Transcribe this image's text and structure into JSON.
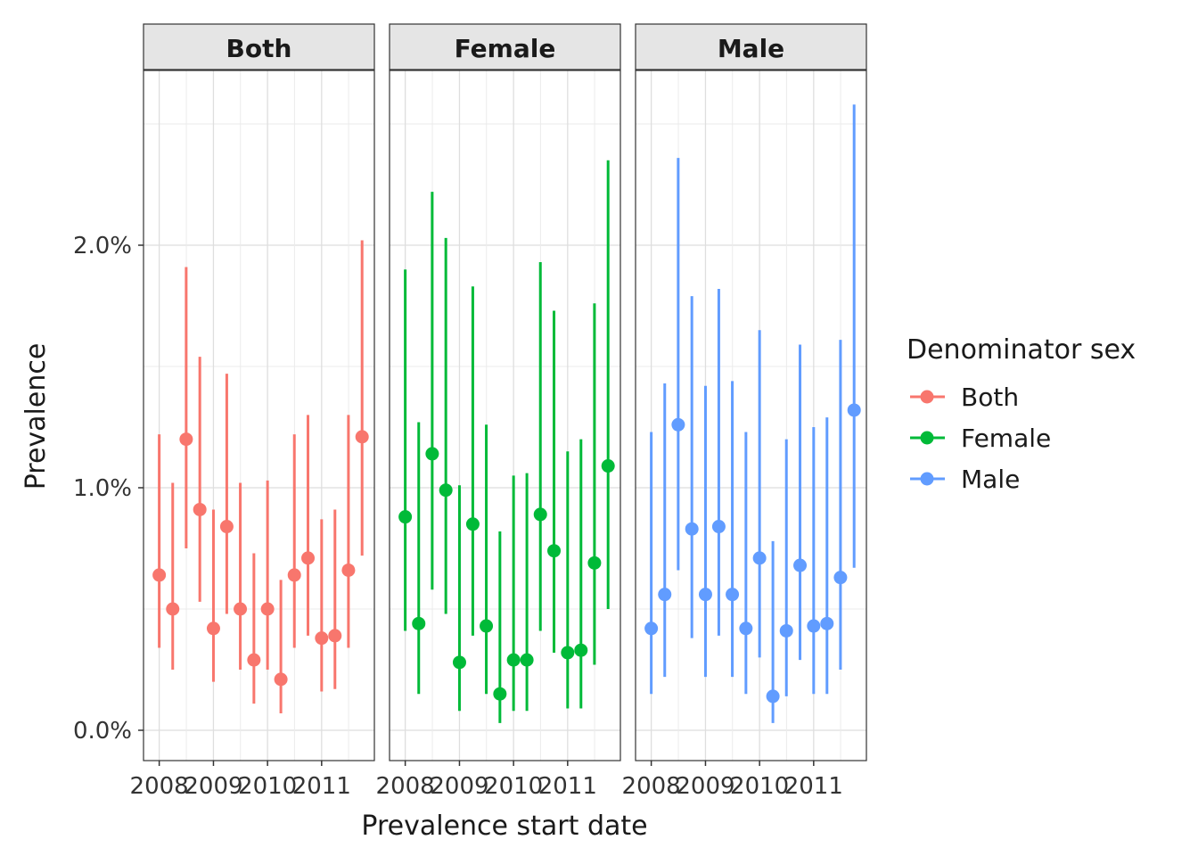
{
  "chart_data": {
    "type": "scatter",
    "xlabel": "Prevalence start date",
    "ylabel": "Prevalence",
    "ylim": [
      -0.0012,
      0.0272
    ],
    "xlim": [
      "2007-09-17",
      "2011-12-23"
    ],
    "y_ticks": [
      {
        "value": 0.0,
        "label": "0.0%"
      },
      {
        "value": 0.01,
        "label": "1.0%"
      },
      {
        "value": 0.02,
        "label": "2.0%"
      }
    ],
    "x_ticks": [
      {
        "date": "2008-01-01",
        "label": "2008"
      },
      {
        "date": "2009-01-01",
        "label": "2009"
      },
      {
        "date": "2010-01-01",
        "label": "2010"
      },
      {
        "date": "2011-01-01",
        "label": "2011"
      }
    ],
    "grid": true,
    "legend": {
      "title": "Denominator sex",
      "position": "right"
    },
    "panels": [
      {
        "strip": "Both",
        "color": "#F8766D",
        "points": [
          {
            "x": "2008-01-01",
            "y": 0.0064,
            "ymin": 0.0034,
            "ymax": 0.0122
          },
          {
            "x": "2008-04-01",
            "y": 0.005,
            "ymin": 0.0025,
            "ymax": 0.0102
          },
          {
            "x": "2008-07-01",
            "y": 0.012,
            "ymin": 0.0075,
            "ymax": 0.0191
          },
          {
            "x": "2008-10-01",
            "y": 0.0091,
            "ymin": 0.0053,
            "ymax": 0.0154
          },
          {
            "x": "2009-01-01",
            "y": 0.0042,
            "ymin": 0.002,
            "ymax": 0.0091
          },
          {
            "x": "2009-04-01",
            "y": 0.0084,
            "ymin": 0.0048,
            "ymax": 0.0147
          },
          {
            "x": "2009-07-01",
            "y": 0.005,
            "ymin": 0.0025,
            "ymax": 0.0102
          },
          {
            "x": "2009-10-01",
            "y": 0.0029,
            "ymin": 0.0011,
            "ymax": 0.0073
          },
          {
            "x": "2010-01-01",
            "y": 0.005,
            "ymin": 0.0025,
            "ymax": 0.0103
          },
          {
            "x": "2010-04-01",
            "y": 0.0021,
            "ymin": 0.0007,
            "ymax": 0.0062
          },
          {
            "x": "2010-07-01",
            "y": 0.0064,
            "ymin": 0.0034,
            "ymax": 0.0122
          },
          {
            "x": "2010-10-01",
            "y": 0.0071,
            "ymin": 0.0039,
            "ymax": 0.013
          },
          {
            "x": "2011-01-01",
            "y": 0.0038,
            "ymin": 0.0016,
            "ymax": 0.0087
          },
          {
            "x": "2011-04-01",
            "y": 0.0039,
            "ymin": 0.0017,
            "ymax": 0.0091
          },
          {
            "x": "2011-07-01",
            "y": 0.0066,
            "ymin": 0.0034,
            "ymax": 0.013
          },
          {
            "x": "2011-10-01",
            "y": 0.0121,
            "ymin": 0.0072,
            "ymax": 0.0202
          }
        ]
      },
      {
        "strip": "Female",
        "color": "#00BA38",
        "points": [
          {
            "x": "2008-01-01",
            "y": 0.0088,
            "ymin": 0.0041,
            "ymax": 0.019
          },
          {
            "x": "2008-04-01",
            "y": 0.0044,
            "ymin": 0.0015,
            "ymax": 0.0127
          },
          {
            "x": "2008-07-01",
            "y": 0.0114,
            "ymin": 0.0058,
            "ymax": 0.0222
          },
          {
            "x": "2008-10-01",
            "y": 0.0099,
            "ymin": 0.0048,
            "ymax": 0.0203
          },
          {
            "x": "2009-01-01",
            "y": 0.0028,
            "ymin": 0.0008,
            "ymax": 0.0101
          },
          {
            "x": "2009-04-01",
            "y": 0.0085,
            "ymin": 0.0039,
            "ymax": 0.0183
          },
          {
            "x": "2009-07-01",
            "y": 0.0043,
            "ymin": 0.0015,
            "ymax": 0.0126
          },
          {
            "x": "2009-10-01",
            "y": 0.0015,
            "ymin": 0.0003,
            "ymax": 0.0082
          },
          {
            "x": "2010-01-01",
            "y": 0.0029,
            "ymin": 0.0008,
            "ymax": 0.0105
          },
          {
            "x": "2010-04-01",
            "y": 0.0029,
            "ymin": 0.0008,
            "ymax": 0.0106
          },
          {
            "x": "2010-07-01",
            "y": 0.0089,
            "ymin": 0.0041,
            "ymax": 0.0193
          },
          {
            "x": "2010-10-01",
            "y": 0.0074,
            "ymin": 0.0032,
            "ymax": 0.0173
          },
          {
            "x": "2011-01-01",
            "y": 0.0032,
            "ymin": 0.0009,
            "ymax": 0.0115
          },
          {
            "x": "2011-04-01",
            "y": 0.0033,
            "ymin": 0.0009,
            "ymax": 0.012
          },
          {
            "x": "2011-07-01",
            "y": 0.0069,
            "ymin": 0.0027,
            "ymax": 0.0176
          },
          {
            "x": "2011-10-01",
            "y": 0.0109,
            "ymin": 0.005,
            "ymax": 0.0235
          }
        ]
      },
      {
        "strip": "Male",
        "color": "#619CFF",
        "points": [
          {
            "x": "2008-01-01",
            "y": 0.0042,
            "ymin": 0.0015,
            "ymax": 0.0123
          },
          {
            "x": "2008-04-01",
            "y": 0.0056,
            "ymin": 0.0022,
            "ymax": 0.0143
          },
          {
            "x": "2008-07-01",
            "y": 0.0126,
            "ymin": 0.0066,
            "ymax": 0.0236
          },
          {
            "x": "2008-10-01",
            "y": 0.0083,
            "ymin": 0.0038,
            "ymax": 0.0179
          },
          {
            "x": "2009-01-01",
            "y": 0.0056,
            "ymin": 0.0022,
            "ymax": 0.0142
          },
          {
            "x": "2009-04-01",
            "y": 0.0084,
            "ymin": 0.0039,
            "ymax": 0.0182
          },
          {
            "x": "2009-07-01",
            "y": 0.0056,
            "ymin": 0.0022,
            "ymax": 0.0144
          },
          {
            "x": "2009-10-01",
            "y": 0.0042,
            "ymin": 0.0015,
            "ymax": 0.0123
          },
          {
            "x": "2010-01-01",
            "y": 0.0071,
            "ymin": 0.003,
            "ymax": 0.0165
          },
          {
            "x": "2010-04-01",
            "y": 0.0014,
            "ymin": 0.0003,
            "ymax": 0.0078
          },
          {
            "x": "2010-07-01",
            "y": 0.0041,
            "ymin": 0.0014,
            "ymax": 0.012
          },
          {
            "x": "2010-10-01",
            "y": 0.0068,
            "ymin": 0.0029,
            "ymax": 0.0159
          },
          {
            "x": "2011-01-01",
            "y": 0.0043,
            "ymin": 0.0015,
            "ymax": 0.0125
          },
          {
            "x": "2011-04-01",
            "y": 0.0044,
            "ymin": 0.0015,
            "ymax": 0.0129
          },
          {
            "x": "2011-07-01",
            "y": 0.0063,
            "ymin": 0.0025,
            "ymax": 0.0161
          },
          {
            "x": "2011-10-01",
            "y": 0.0132,
            "ymin": 0.0067,
            "ymax": 0.0258
          }
        ]
      }
    ],
    "legend_entries": [
      {
        "label": "Both",
        "color": "#F8766D"
      },
      {
        "label": "Female",
        "color": "#00BA38"
      },
      {
        "label": "Male",
        "color": "#619CFF"
      }
    ]
  }
}
